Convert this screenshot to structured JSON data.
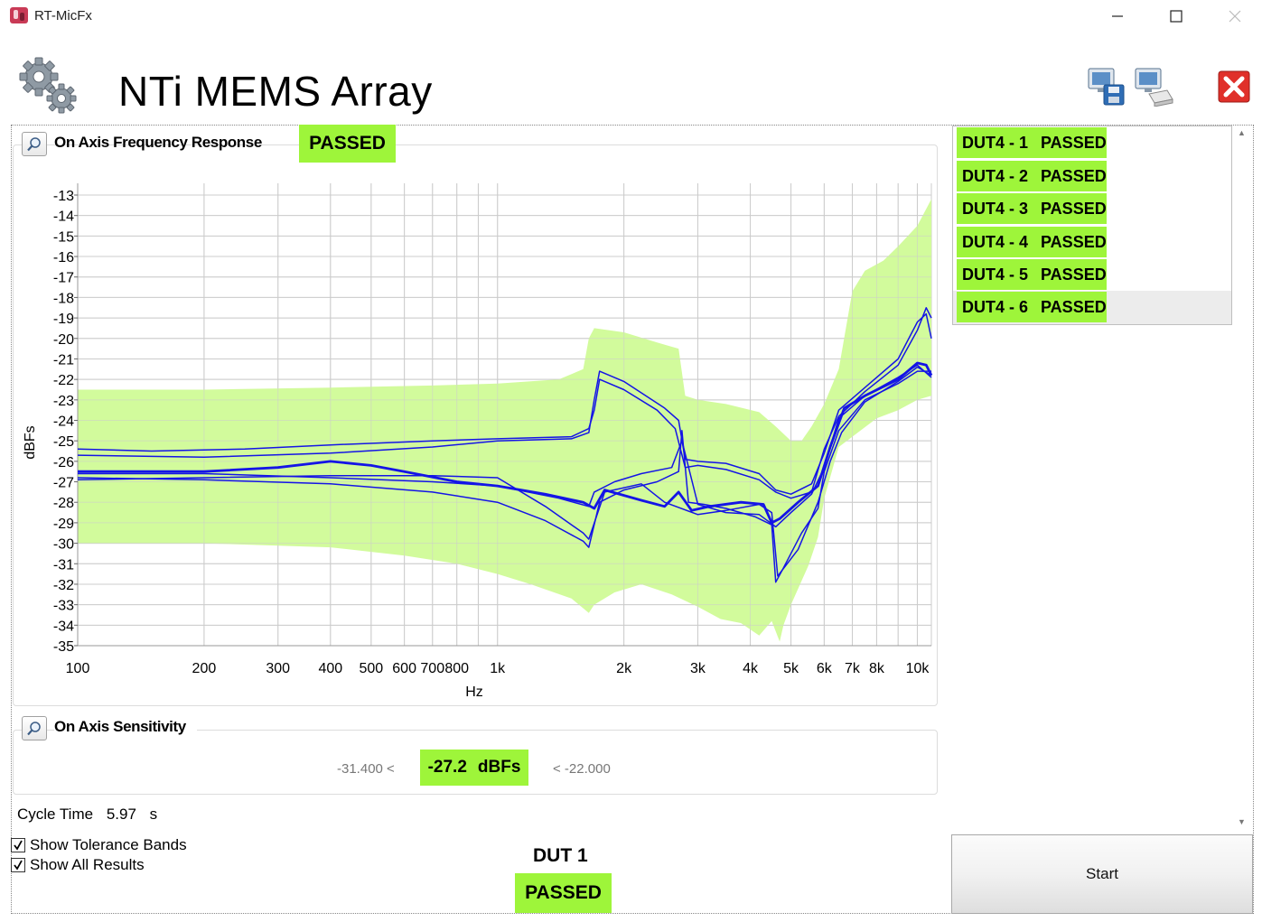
{
  "window": {
    "title": "RT-MicFx"
  },
  "header": {
    "title": "NTi MEMS Array"
  },
  "icons": {
    "app": "app-icon",
    "gears": "gears-icon",
    "save": "save-screenshot-icon",
    "print": "print-screenshot-icon",
    "exit": "exit-icon",
    "zoom": "magnifier-icon"
  },
  "frequency_panel": {
    "title": "On Axis Frequency Response",
    "status": "PASSED"
  },
  "chart_data": {
    "type": "line",
    "xlabel": "Hz",
    "ylabel": "dBFs",
    "xscale": "log",
    "xlim": [
      100,
      10800
    ],
    "ylim": [
      -35,
      -13
    ],
    "xticks": [
      100,
      200,
      300,
      400,
      500,
      600,
      700,
      800,
      1000,
      2000,
      3000,
      4000,
      5000,
      6000,
      7000,
      8000,
      10000
    ],
    "xtick_labels": [
      "100",
      "200",
      "300",
      "400",
      "500",
      "600",
      "700",
      "800",
      "1k",
      "2k",
      "3k",
      "4k",
      "5k",
      "6k",
      "7k",
      "8k",
      "10k"
    ],
    "yticks": [
      -13,
      -14,
      -15,
      -16,
      -17,
      -18,
      -19,
      -20,
      -21,
      -22,
      -23,
      -24,
      -25,
      -26,
      -27,
      -28,
      -29,
      -30,
      -31,
      -32,
      -33,
      -34,
      -35
    ],
    "ytick_labels": [
      "-13",
      "-14",
      "-15",
      "-16",
      "-17",
      "-18",
      "-19",
      "-20",
      "-21",
      "-22",
      "-23",
      "-24",
      "-25",
      "-26",
      "-27",
      "-28",
      "-29",
      "-30",
      "-31",
      "-32",
      "-33",
      "-34",
      "-35"
    ],
    "grid": true,
    "colors": {
      "band": "#d2fb9c",
      "line": "#1414e6",
      "grid": "#cccccc"
    },
    "tolerance_band": {
      "upper": [
        [
          100,
          -22.5
        ],
        [
          200,
          -22.5
        ],
        [
          400,
          -22.4
        ],
        [
          700,
          -22.3
        ],
        [
          1000,
          -22.2
        ],
        [
          1400,
          -22
        ],
        [
          1600,
          -21.5
        ],
        [
          1650,
          -20
        ],
        [
          1700,
          -19.5
        ],
        [
          2000,
          -19.7
        ],
        [
          2400,
          -20.2
        ],
        [
          2700,
          -20.5
        ],
        [
          2800,
          -22.8
        ],
        [
          3000,
          -23.0
        ],
        [
          3500,
          -23.2
        ],
        [
          4200,
          -23.6
        ],
        [
          4600,
          -24.3
        ],
        [
          5000,
          -25.0
        ],
        [
          5300,
          -25.0
        ],
        [
          5600,
          -24.3
        ],
        [
          6000,
          -23.2
        ],
        [
          6500,
          -21.5
        ],
        [
          7000,
          -17.7
        ],
        [
          7500,
          -16.7
        ],
        [
          8300,
          -16.2
        ],
        [
          9000,
          -15.5
        ],
        [
          10000,
          -14.5
        ],
        [
          10800,
          -13.2
        ]
      ],
      "lower": [
        [
          10800,
          -22.8
        ],
        [
          10000,
          -23.0
        ],
        [
          9000,
          -23.5
        ],
        [
          8000,
          -23.9
        ],
        [
          7000,
          -24.8
        ],
        [
          6500,
          -25.3
        ],
        [
          6000,
          -27.8
        ],
        [
          5800,
          -29.7
        ],
        [
          5500,
          -31.1
        ],
        [
          5000,
          -33.0
        ],
        [
          4800,
          -34.0
        ],
        [
          4700,
          -34.8
        ],
        [
          4500,
          -33.8
        ],
        [
          4200,
          -34.5
        ],
        [
          3800,
          -33.9
        ],
        [
          3400,
          -33.7
        ],
        [
          3000,
          -33.1
        ],
        [
          2600,
          -32.5
        ],
        [
          2200,
          -32.0
        ],
        [
          1900,
          -32.4
        ],
        [
          1700,
          -33.0
        ],
        [
          1650,
          -33.4
        ],
        [
          1500,
          -32.7
        ],
        [
          1200,
          -32.0
        ],
        [
          1000,
          -31.5
        ],
        [
          800,
          -31.0
        ],
        [
          600,
          -30.6
        ],
        [
          400,
          -30.2
        ],
        [
          200,
          -30.0
        ],
        [
          100,
          -30.0
        ]
      ]
    },
    "series": [
      {
        "values": [
          [
            100,
            -25.4
          ],
          [
            150,
            -25.5
          ],
          [
            250,
            -25.4
          ],
          [
            400,
            -25.2
          ],
          [
            700,
            -25.0
          ],
          [
            1000,
            -24.9
          ],
          [
            1500,
            -24.8
          ],
          [
            1650,
            -24.4
          ],
          [
            1700,
            -23.5
          ],
          [
            1750,
            -22.0
          ],
          [
            2000,
            -22.5
          ],
          [
            2400,
            -23.5
          ],
          [
            2650,
            -24.4
          ],
          [
            2800,
            -26.3
          ],
          [
            3000,
            -26.2
          ],
          [
            3500,
            -26.4
          ],
          [
            4200,
            -26.9
          ],
          [
            4600,
            -27.5
          ],
          [
            5000,
            -27.8
          ],
          [
            5600,
            -27.5
          ],
          [
            6000,
            -25.4
          ],
          [
            6500,
            -23.8
          ],
          [
            7500,
            -22.6
          ],
          [
            9000,
            -21.3
          ],
          [
            10000,
            -19.6
          ],
          [
            10500,
            -18.5
          ],
          [
            10800,
            -19.0
          ]
        ]
      },
      {
        "values": [
          [
            100,
            -25.7
          ],
          [
            200,
            -25.8
          ],
          [
            400,
            -25.6
          ],
          [
            700,
            -25.3
          ],
          [
            1000,
            -25.0
          ],
          [
            1500,
            -24.9
          ],
          [
            1650,
            -24.6
          ],
          [
            1700,
            -23.0
          ],
          [
            1750,
            -21.6
          ],
          [
            2000,
            -22.1
          ],
          [
            2500,
            -23.4
          ],
          [
            2700,
            -24.0
          ],
          [
            2800,
            -25.9
          ],
          [
            3000,
            -26.0
          ],
          [
            3500,
            -26.1
          ],
          [
            4200,
            -26.6
          ],
          [
            4600,
            -27.4
          ],
          [
            5000,
            -27.6
          ],
          [
            5600,
            -27.1
          ],
          [
            6000,
            -25.6
          ],
          [
            6500,
            -23.5
          ],
          [
            7500,
            -22.4
          ],
          [
            9000,
            -21.0
          ],
          [
            10000,
            -19.2
          ],
          [
            10500,
            -18.8
          ],
          [
            10800,
            -20.0
          ]
        ]
      },
      {
        "values": [
          [
            100,
            -26.5
          ],
          [
            200,
            -26.5
          ],
          [
            300,
            -26.3
          ],
          [
            400,
            -26.0
          ],
          [
            500,
            -26.2
          ],
          [
            600,
            -26.5
          ],
          [
            800,
            -27.0
          ],
          [
            1000,
            -27.2
          ],
          [
            1300,
            -27.6
          ],
          [
            1600,
            -28.0
          ],
          [
            1700,
            -28.3
          ],
          [
            1800,
            -27.4
          ],
          [
            2200,
            -27.9
          ],
          [
            2500,
            -28.2
          ],
          [
            2700,
            -27.5
          ],
          [
            2900,
            -28.4
          ],
          [
            3200,
            -28.2
          ],
          [
            3800,
            -28.0
          ],
          [
            4300,
            -28.1
          ],
          [
            4500,
            -29.0
          ],
          [
            4700,
            -28.8
          ],
          [
            5200,
            -28.0
          ],
          [
            5800,
            -27.2
          ],
          [
            6200,
            -25.3
          ],
          [
            6700,
            -23.4
          ],
          [
            7500,
            -22.8
          ],
          [
            9000,
            -22.0
          ],
          [
            10000,
            -21.2
          ],
          [
            10500,
            -21.3
          ],
          [
            10800,
            -21.8
          ]
        ]
      },
      {
        "values": [
          [
            100,
            -26.6
          ],
          [
            200,
            -26.6
          ],
          [
            400,
            -26.8
          ],
          [
            700,
            -27.0
          ],
          [
            1000,
            -27.2
          ],
          [
            1400,
            -27.8
          ],
          [
            1650,
            -28.2
          ],
          [
            1700,
            -27.5
          ],
          [
            1900,
            -27.0
          ],
          [
            2200,
            -26.6
          ],
          [
            2600,
            -26.3
          ],
          [
            2750,
            -25.0
          ],
          [
            3000,
            -28.1
          ],
          [
            3500,
            -28.5
          ],
          [
            4200,
            -28.6
          ],
          [
            4600,
            -29.2
          ],
          [
            5000,
            -28.5
          ],
          [
            5600,
            -27.6
          ],
          [
            6000,
            -26.3
          ],
          [
            6500,
            -23.9
          ],
          [
            7500,
            -22.8
          ],
          [
            9000,
            -21.9
          ],
          [
            10000,
            -21.3
          ],
          [
            10800,
            -21.9
          ]
        ]
      },
      {
        "values": [
          [
            100,
            -26.8
          ],
          [
            200,
            -26.9
          ],
          [
            400,
            -27.1
          ],
          [
            700,
            -27.5
          ],
          [
            1000,
            -28.0
          ],
          [
            1300,
            -28.9
          ],
          [
            1600,
            -29.9
          ],
          [
            1650,
            -30.2
          ],
          [
            1750,
            -28.0
          ],
          [
            2000,
            -27.4
          ],
          [
            2400,
            -27.0
          ],
          [
            2700,
            -26.5
          ],
          [
            2750,
            -24.5
          ],
          [
            2850,
            -28.0
          ],
          [
            3100,
            -28.1
          ],
          [
            3500,
            -28.3
          ],
          [
            4100,
            -28.7
          ],
          [
            4500,
            -29.1
          ],
          [
            4600,
            -31.9
          ],
          [
            4800,
            -31.2
          ],
          [
            5300,
            -29.5
          ],
          [
            5800,
            -28.3
          ],
          [
            6000,
            -26.5
          ],
          [
            6500,
            -24.5
          ],
          [
            7500,
            -23.0
          ],
          [
            9000,
            -22.2
          ],
          [
            10000,
            -21.6
          ],
          [
            10800,
            -21.6
          ]
        ]
      },
      {
        "values": [
          [
            100,
            -26.9
          ],
          [
            200,
            -26.8
          ],
          [
            400,
            -26.7
          ],
          [
            700,
            -26.7
          ],
          [
            1000,
            -26.8
          ],
          [
            1300,
            -28.2
          ],
          [
            1600,
            -29.5
          ],
          [
            1650,
            -29.8
          ],
          [
            1800,
            -27.5
          ],
          [
            2200,
            -27.1
          ],
          [
            2500,
            -28.0
          ],
          [
            3000,
            -28.6
          ],
          [
            3500,
            -28.4
          ],
          [
            4200,
            -28.1
          ],
          [
            4500,
            -28.5
          ],
          [
            4650,
            -31.6
          ],
          [
            5200,
            -30.3
          ],
          [
            5800,
            -28.0
          ],
          [
            6200,
            -26.0
          ],
          [
            6600,
            -24.6
          ],
          [
            7500,
            -23.1
          ],
          [
            9000,
            -22.1
          ],
          [
            10000,
            -21.4
          ],
          [
            10800,
            -21.8
          ]
        ]
      }
    ]
  },
  "sensitivity_panel": {
    "title": "On Axis Sensitivity",
    "lower_limit": "-31.400 <",
    "value": "-27.2",
    "unit": "dBFs",
    "upper_limit": "< -22.000"
  },
  "cycle_time": {
    "label": "Cycle Time",
    "value": "5.97",
    "unit": "s"
  },
  "options": [
    {
      "label": "Show Tolerance Bands",
      "checked": true
    },
    {
      "label": "Show All Results",
      "checked": true
    }
  ],
  "result": {
    "dut": "DUT 1",
    "status": "PASSED"
  },
  "dut_list": [
    {
      "name": "DUT4 - 1",
      "status": "PASSED"
    },
    {
      "name": "DUT4 - 2",
      "status": "PASSED"
    },
    {
      "name": "DUT4 - 3",
      "status": "PASSED"
    },
    {
      "name": "DUT4 - 4",
      "status": "PASSED"
    },
    {
      "name": "DUT4 - 5",
      "status": "PASSED"
    },
    {
      "name": "DUT4 - 6",
      "status": "PASSED"
    }
  ],
  "start_button": {
    "label": "Start"
  }
}
